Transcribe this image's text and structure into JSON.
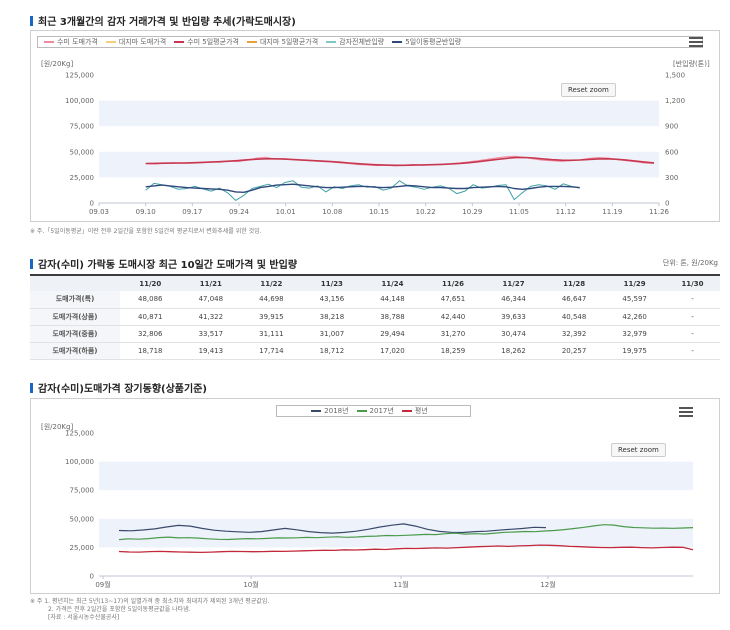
{
  "section1": {
    "title": "최근 3개월간의 감자 거래가격 및 반입량 추세(가락도매시장)",
    "reset_label": "Reset zoom",
    "note": "※ 주.「5일이동평균」이란 전후 2일간을 포함한 5일간의 평균치로서 변화추세를 위한 것임."
  },
  "section2": {
    "title": "감자(수미) 가락동 도매시장 최근 10일간 도매가격 및 반입량",
    "unit": "단위: 톤, 원/20Kg",
    "columns": [
      "11/20",
      "11/21",
      "11/22",
      "11/23",
      "11/24",
      "11/26",
      "11/27",
      "11/28",
      "11/29",
      "11/30"
    ],
    "rows": [
      {
        "label": "도매가격(특)",
        "values": [
          "48,086",
          "47,048",
          "44,698",
          "43,156",
          "44,148",
          "47,651",
          "46,344",
          "46,647",
          "45,597",
          "-"
        ]
      },
      {
        "label": "도매가격(상품)",
        "values": [
          "40,871",
          "41,322",
          "39,915",
          "38,218",
          "38,788",
          "42,440",
          "39,633",
          "40,548",
          "42,260",
          "-"
        ]
      },
      {
        "label": "도매가격(중품)",
        "values": [
          "32,806",
          "33,517",
          "31,111",
          "31,007",
          "29,494",
          "31,270",
          "30,474",
          "32,392",
          "32,979",
          "-"
        ]
      },
      {
        "label": "도매가격(하품)",
        "values": [
          "18,718",
          "19,413",
          "17,714",
          "18,712",
          "17,020",
          "18,259",
          "18,262",
          "20,257",
          "19,975",
          "-"
        ]
      }
    ]
  },
  "section3": {
    "title": "감자(수미)도매가격 장기동향(상품기준)",
    "reset_label": "Reset zoom",
    "note_lines": [
      "※ 주 1. 평년치는 최근 5년(13~17)의 일별가격 중 최소치와 최대치가 제외된 3개년 평균값임.",
      "2. 가격은 전후 2일간을 포함한 5일이동평균값을 나타냄.",
      "[자료 : 서울시농수산물공사]"
    ]
  },
  "chart_data": [
    {
      "type": "line",
      "ylabel_left": "[원/20Kg]",
      "ylabel_right": "[반입량(톤)]",
      "ylim": [
        0,
        125000
      ],
      "ylim_right": [
        0,
        1500
      ],
      "yticks": [
        "0",
        "25,000",
        "50,000",
        "75,000",
        "100,000",
        "125,000"
      ],
      "yticks_right": [
        "0",
        "300",
        "600",
        "900",
        "1,200",
        "1,500"
      ],
      "xticks": [
        "09.03",
        "09.10",
        "09.17",
        "09.24",
        "10.01",
        "10.08",
        "10.15",
        "10.22",
        "10.29",
        "11.05",
        "11.12",
        "11.19",
        "11.26"
      ],
      "legend": [
        "수미 도매가격",
        "대지마 도매가격",
        "수미 5일평균가격",
        "대지마 5일평균가격",
        "감자전체반입량",
        "5일이동평균반입량"
      ],
      "colors": {
        "price": "#f08aa0",
        "price_avg": "#c8374f",
        "volume": "#3fa1a6",
        "volume_avg": "#2f4a7a"
      },
      "series": [
        {
          "name": "수미 도매가격",
          "axis": "left",
          "values": [
            38500,
            38200,
            38800,
            39400,
            38700,
            39000,
            39200,
            40200,
            39800,
            41000,
            40400,
            41800,
            43800,
            44600,
            42900,
            43400,
            42200,
            41600,
            41300,
            40500,
            40100,
            39200,
            38500,
            37500,
            37100,
            36500,
            36900,
            36200,
            37000,
            37600,
            36800,
            37400,
            37900,
            38600,
            39200,
            40300,
            41400,
            42800,
            44000,
            45200,
            45600,
            44400,
            43000,
            41800,
            41300,
            40600,
            41400,
            42200,
            43600,
            44400,
            43900,
            42500,
            41200,
            40200,
            39000,
            38700
          ]
        },
        {
          "name": "수미 5일평균가격",
          "axis": "left",
          "values": [
            38600,
            38700,
            38900,
            39000,
            39100,
            39300,
            39600,
            39900,
            40300,
            40800,
            41400,
            42200,
            42800,
            43200,
            43200,
            42900,
            42400,
            41900,
            41400,
            40900,
            40400,
            39800,
            39100,
            38400,
            37800,
            37300,
            37000,
            36800,
            36800,
            37000,
            37200,
            37400,
            37700,
            38100,
            38700,
            39400,
            40300,
            41400,
            42600,
            43600,
            44300,
            44400,
            43900,
            43100,
            42300,
            41800,
            41700,
            42000,
            42600,
            43100,
            43200,
            42700,
            41900,
            40900,
            39900,
            39200
          ]
        },
        {
          "name": "감자전체반입량",
          "axis": "right",
          "values": [
            150,
            230,
            215,
            195,
            160,
            170,
            195,
            165,
            140,
            175,
            120,
            30,
            90,
            170,
            195,
            220,
            180,
            240,
            260,
            185,
            175,
            200,
            130,
            190,
            170,
            200,
            215,
            185,
            195,
            150,
            175,
            260,
            200,
            185,
            160,
            185,
            200,
            175,
            110,
            140,
            215,
            175,
            185,
            205,
            215,
            40,
            120,
            195,
            215,
            200,
            160,
            225,
            195,
            175
          ]
        },
        {
          "name": "5일이동평균반입량",
          "axis": "right",
          "values": [
            190,
            200,
            210,
            200,
            190,
            180,
            175,
            170,
            165,
            160,
            150,
            130,
            125,
            150,
            180,
            195,
            210,
            215,
            220,
            210,
            200,
            190,
            180,
            180,
            185,
            190,
            195,
            195,
            185,
            180,
            185,
            195,
            205,
            200,
            190,
            180,
            180,
            175,
            170,
            170,
            180,
            185,
            190,
            195,
            190,
            170,
            160,
            170,
            185,
            195,
            195,
            195,
            190,
            180
          ]
        }
      ]
    },
    {
      "type": "line",
      "ylabel": "[원/20Kg]",
      "ylim": [
        0,
        125000
      ],
      "yticks": [
        "0",
        "25,000",
        "50,000",
        "75,000",
        "100,000",
        "125,000"
      ],
      "xticks": [
        "09월",
        "10월",
        "11월",
        "12월"
      ],
      "legend": [
        "2018년",
        "2017년",
        "평년"
      ],
      "series": [
        {
          "name": "2018년",
          "color": "#3a4a6b",
          "values": [
            39800,
            39500,
            40200,
            41200,
            42800,
            44200,
            43600,
            41600,
            40000,
            39200,
            38600,
            38200,
            38800,
            40200,
            41600,
            40400,
            38800,
            37900,
            37500,
            38100,
            39200,
            40800,
            42800,
            44400,
            45500,
            43600,
            40800,
            39000,
            38200,
            38000,
            38800,
            39200,
            40000,
            40800,
            41500,
            42600,
            42300
          ]
        },
        {
          "name": "2017년",
          "color": "#4c9a4c",
          "values": [
            31800,
            32500,
            32200,
            32700,
            33600,
            34000,
            33300,
            33500,
            33100,
            32500,
            32100,
            31900,
            32300,
            32700,
            32500,
            32900,
            33300,
            33200,
            33400,
            33700,
            33500,
            33900,
            34300,
            33800,
            34100,
            34600,
            34900,
            35400,
            35200,
            35600,
            35900,
            36400,
            36200,
            37000,
            37400,
            36600,
            37000,
            36700,
            37500,
            38200,
            38500,
            38900,
            38700,
            39300,
            39800,
            40600,
            41500,
            42600,
            43800,
            44800,
            44500,
            43200,
            42400,
            42100,
            41800,
            41900,
            41700,
            42000,
            42300
          ]
        },
        {
          "name": "평년",
          "color": "#c22a3c",
          "values": [
            21400,
            21000,
            20900,
            21300,
            21500,
            21200,
            21000,
            20800,
            20600,
            20900,
            21200,
            21500,
            21400,
            21200,
            21300,
            21600,
            21500,
            21800,
            22000,
            22300,
            22500,
            22400,
            22900,
            22700,
            23000,
            23400,
            23200,
            23800,
            24100,
            24000,
            24300,
            24600,
            24400,
            24800,
            25200,
            25600,
            25900,
            26200,
            25900,
            26300,
            26600,
            27000,
            26800,
            26500,
            25900,
            25600,
            25200,
            24900,
            24800,
            25100,
            25200,
            24800,
            24600,
            24900,
            25200,
            25100,
            23000
          ]
        }
      ]
    }
  ]
}
